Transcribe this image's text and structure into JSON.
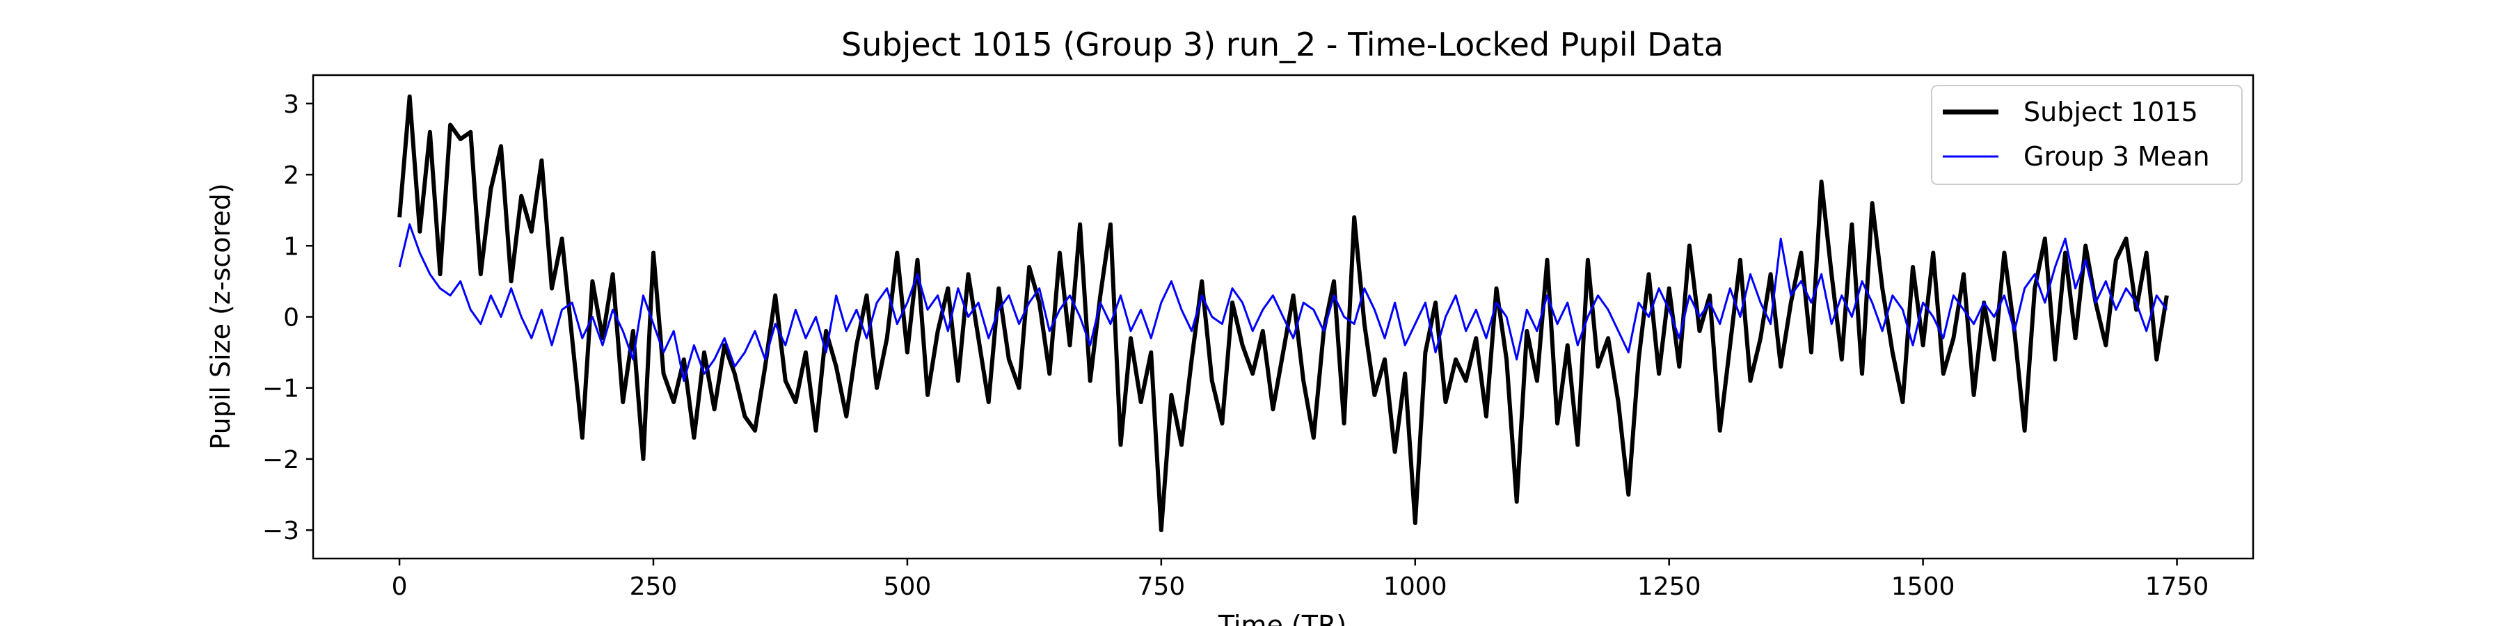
{
  "chart_data": {
    "type": "line",
    "title": "Subject 1015 (Group 3) run_2 - Time-Locked Pupil Data",
    "xlabel": "Time (TR)",
    "ylabel": "Pupil Size (z-scored)",
    "xlim": [
      -85,
      1825
    ],
    "ylim": [
      -3.4,
      3.4
    ],
    "xticks": [
      0,
      250,
      500,
      750,
      1000,
      1250,
      1500,
      1750
    ],
    "yticks": [
      -3,
      -2,
      -1,
      0,
      1,
      2,
      3
    ],
    "grid": false,
    "legend": "top-right",
    "series": [
      {
        "name": "Subject 1015",
        "color": "#000000",
        "x": [
          0,
          10,
          20,
          30,
          40,
          50,
          60,
          70,
          80,
          90,
          100,
          110,
          120,
          130,
          140,
          150,
          160,
          170,
          180,
          190,
          200,
          210,
          220,
          230,
          240,
          250,
          260,
          270,
          280,
          290,
          300,
          310,
          320,
          330,
          340,
          350,
          360,
          370,
          380,
          390,
          400,
          410,
          420,
          430,
          440,
          450,
          460,
          470,
          480,
          490,
          500,
          510,
          520,
          530,
          540,
          550,
          560,
          570,
          580,
          590,
          600,
          610,
          620,
          630,
          640,
          650,
          660,
          670,
          680,
          690,
          700,
          710,
          720,
          730,
          740,
          750,
          760,
          770,
          780,
          790,
          800,
          810,
          820,
          830,
          840,
          850,
          860,
          870,
          880,
          890,
          900,
          910,
          920,
          930,
          940,
          950,
          960,
          970,
          980,
          990,
          1000,
          1010,
          1020,
          1030,
          1040,
          1050,
          1060,
          1070,
          1080,
          1090,
          1100,
          1110,
          1120,
          1130,
          1140,
          1150,
          1160,
          1170,
          1180,
          1190,
          1200,
          1210,
          1220,
          1230,
          1240,
          1250,
          1260,
          1270,
          1280,
          1290,
          1300,
          1310,
          1320,
          1330,
          1340,
          1350,
          1360,
          1370,
          1380,
          1390,
          1400,
          1410,
          1420,
          1430,
          1440,
          1450,
          1460,
          1470,
          1480,
          1490,
          1500,
          1510,
          1520,
          1530,
          1540,
          1550,
          1560,
          1570,
          1580,
          1590,
          1600,
          1610,
          1620,
          1630,
          1640,
          1650,
          1660,
          1670,
          1680,
          1690,
          1700,
          1710,
          1720,
          1730,
          1740
        ],
        "values": [
          1.4,
          3.1,
          1.2,
          2.6,
          0.6,
          2.7,
          2.5,
          2.6,
          0.6,
          1.8,
          2.4,
          0.5,
          1.7,
          1.2,
          2.2,
          0.4,
          1.1,
          -0.3,
          -1.7,
          0.5,
          -0.3,
          0.6,
          -1.2,
          -0.2,
          -2.0,
          0.9,
          -0.8,
          -1.2,
          -0.6,
          -1.7,
          -0.5,
          -1.3,
          -0.4,
          -0.8,
          -1.4,
          -1.6,
          -0.7,
          0.3,
          -0.9,
          -1.2,
          -0.5,
          -1.6,
          -0.2,
          -0.7,
          -1.4,
          -0.4,
          0.3,
          -1.0,
          -0.3,
          0.9,
          -0.5,
          0.8,
          -1.1,
          -0.2,
          0.4,
          -0.9,
          0.6,
          -0.3,
          -1.2,
          0.4,
          -0.6,
          -1.0,
          0.7,
          0.2,
          -0.8,
          0.9,
          -0.4,
          1.3,
          -0.9,
          0.3,
          1.3,
          -1.8,
          -0.3,
          -1.2,
          -0.5,
          -3.0,
          -1.1,
          -1.8,
          -0.6,
          0.5,
          -0.9,
          -1.5,
          0.2,
          -0.4,
          -0.8,
          -0.2,
          -1.3,
          -0.5,
          0.3,
          -0.9,
          -1.7,
          -0.2,
          0.5,
          -1.5,
          1.4,
          -0.1,
          -1.1,
          -0.6,
          -1.9,
          -0.8,
          -2.9,
          -0.5,
          0.2,
          -1.2,
          -0.6,
          -0.9,
          -0.3,
          -1.4,
          0.4,
          -0.6,
          -2.6,
          -0.2,
          -0.9,
          0.8,
          -1.5,
          -0.4,
          -1.8,
          0.8,
          -0.7,
          -0.3,
          -1.2,
          -2.5,
          -0.6,
          0.6,
          -0.8,
          0.4,
          -0.7,
          1.0,
          -0.2,
          0.3,
          -1.6,
          -0.4,
          0.8,
          -0.9,
          -0.3,
          0.6,
          -0.7,
          0.2,
          0.9,
          -0.5,
          1.9,
          0.6,
          -0.6,
          1.3,
          -0.8,
          1.6,
          0.4,
          -0.5,
          -1.2,
          0.7,
          -0.4,
          0.9,
          -0.8,
          -0.3,
          0.6,
          -1.1,
          0.2,
          -0.6,
          0.9,
          -0.2,
          -1.6,
          0.4,
          1.1,
          -0.6,
          0.9,
          -0.3,
          1.0,
          0.2,
          -0.4,
          0.8,
          1.1,
          0.1,
          0.9,
          -0.6,
          0.3
        ]
      },
      {
        "name": "Group 3 Mean",
        "color": "#0000ff",
        "x": [
          0,
          10,
          20,
          30,
          40,
          50,
          60,
          70,
          80,
          90,
          100,
          110,
          120,
          130,
          140,
          150,
          160,
          170,
          180,
          190,
          200,
          210,
          220,
          230,
          240,
          250,
          260,
          270,
          280,
          290,
          300,
          310,
          320,
          330,
          340,
          350,
          360,
          370,
          380,
          390,
          400,
          410,
          420,
          430,
          440,
          450,
          460,
          470,
          480,
          490,
          500,
          510,
          520,
          530,
          540,
          550,
          560,
          570,
          580,
          590,
          600,
          610,
          620,
          630,
          640,
          650,
          660,
          670,
          680,
          690,
          700,
          710,
          720,
          730,
          740,
          750,
          760,
          770,
          780,
          790,
          800,
          810,
          820,
          830,
          840,
          850,
          860,
          870,
          880,
          890,
          900,
          910,
          920,
          930,
          940,
          950,
          960,
          970,
          980,
          990,
          1000,
          1010,
          1020,
          1030,
          1040,
          1050,
          1060,
          1070,
          1080,
          1090,
          1100,
          1110,
          1120,
          1130,
          1140,
          1150,
          1160,
          1170,
          1180,
          1190,
          1200,
          1210,
          1220,
          1230,
          1240,
          1250,
          1260,
          1270,
          1280,
          1290,
          1300,
          1310,
          1320,
          1330,
          1340,
          1350,
          1360,
          1370,
          1380,
          1390,
          1400,
          1410,
          1420,
          1430,
          1440,
          1450,
          1460,
          1470,
          1480,
          1490,
          1500,
          1510,
          1520,
          1530,
          1540,
          1550,
          1560,
          1570,
          1580,
          1590,
          1600,
          1610,
          1620,
          1630,
          1640,
          1650,
          1660,
          1670,
          1680,
          1690,
          1700,
          1710,
          1720,
          1730,
          1740
        ],
        "values": [
          0.7,
          1.3,
          0.9,
          0.6,
          0.4,
          0.3,
          0.5,
          0.1,
          -0.1,
          0.3,
          0.0,
          0.4,
          0.0,
          -0.3,
          0.1,
          -0.4,
          0.1,
          0.2,
          -0.3,
          0.0,
          -0.4,
          0.1,
          -0.2,
          -0.6,
          0.3,
          -0.1,
          -0.5,
          -0.2,
          -0.9,
          -0.4,
          -0.8,
          -0.6,
          -0.3,
          -0.7,
          -0.5,
          -0.2,
          -0.6,
          -0.1,
          -0.4,
          0.1,
          -0.3,
          0.0,
          -0.5,
          0.3,
          -0.2,
          0.1,
          -0.3,
          0.2,
          0.4,
          -0.1,
          0.2,
          0.6,
          0.1,
          0.3,
          -0.2,
          0.4,
          0.0,
          0.2,
          -0.3,
          0.1,
          0.3,
          -0.1,
          0.2,
          0.4,
          -0.2,
          0.1,
          0.3,
          0.0,
          -0.4,
          0.2,
          -0.1,
          0.3,
          -0.2,
          0.1,
          -0.3,
          0.2,
          0.5,
          0.1,
          -0.2,
          0.3,
          0.0,
          -0.1,
          0.4,
          0.2,
          -0.2,
          0.1,
          0.3,
          0.0,
          -0.3,
          0.2,
          0.1,
          -0.2,
          0.3,
          0.0,
          -0.1,
          0.4,
          0.1,
          -0.3,
          0.2,
          -0.4,
          -0.1,
          0.2,
          -0.5,
          0.0,
          0.3,
          -0.2,
          0.1,
          -0.3,
          0.2,
          0.0,
          -0.6,
          0.1,
          -0.2,
          0.3,
          -0.1,
          0.2,
          -0.4,
          0.0,
          0.3,
          0.1,
          -0.2,
          -0.5,
          0.2,
          0.0,
          0.4,
          0.1,
          -0.3,
          0.3,
          0.0,
          0.2,
          -0.1,
          0.4,
          0.0,
          0.6,
          0.2,
          -0.1,
          1.1,
          0.3,
          0.5,
          0.2,
          0.6,
          -0.1,
          0.3,
          0.0,
          0.5,
          0.2,
          -0.2,
          0.3,
          0.1,
          -0.4,
          0.2,
          0.0,
          -0.3,
          0.3,
          0.1,
          -0.1,
          0.2,
          0.0,
          0.3,
          -0.2,
          0.4,
          0.6,
          0.2,
          0.7,
          1.1,
          0.4,
          0.8,
          0.2,
          0.5,
          0.1,
          0.4,
          0.2,
          -0.2,
          0.3,
          0.1
        ]
      }
    ]
  }
}
